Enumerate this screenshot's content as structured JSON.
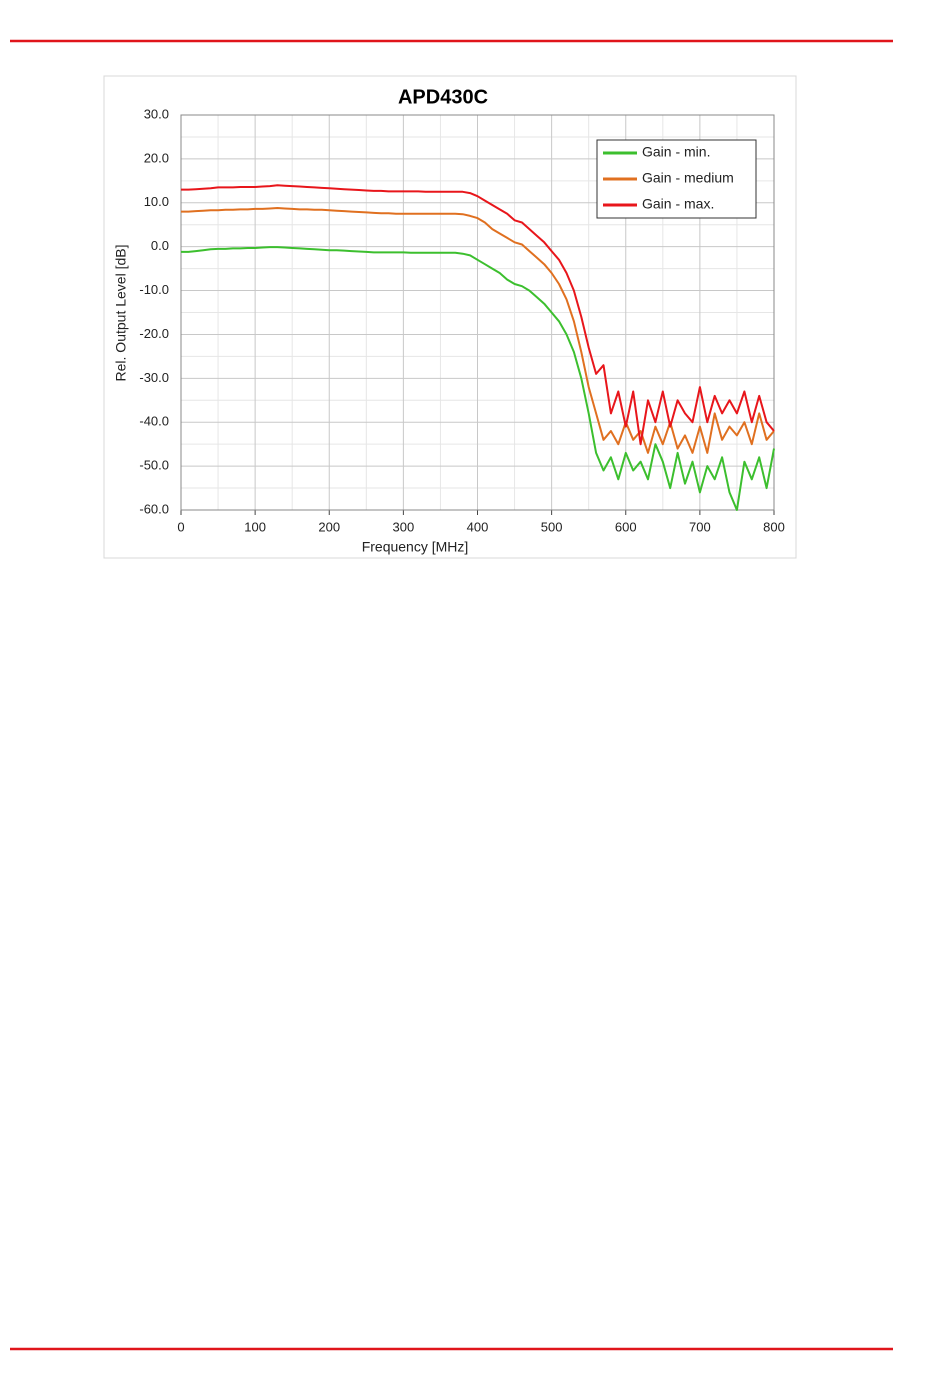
{
  "chart_data": {
    "type": "line",
    "title": "APD430C",
    "x_label": "Frequency [MHz]",
    "y_label": "Rel. Output Level [dB]",
    "x": [
      0,
      10,
      20,
      30,
      40,
      50,
      60,
      70,
      80,
      90,
      100,
      110,
      120,
      130,
      140,
      150,
      160,
      170,
      180,
      190,
      200,
      210,
      220,
      230,
      240,
      250,
      260,
      270,
      280,
      290,
      300,
      310,
      320,
      330,
      340,
      350,
      360,
      370,
      380,
      390,
      400,
      410,
      420,
      430,
      440,
      450,
      460,
      470,
      480,
      490,
      500,
      510,
      520,
      530,
      540,
      550,
      560,
      570,
      580,
      590,
      600,
      610,
      620,
      630,
      640,
      650,
      660,
      670,
      680,
      690,
      700,
      710,
      720,
      730,
      740,
      750,
      760,
      770,
      780,
      790,
      800
    ],
    "series": [
      {
        "name": "Gain - min.",
        "color": "#3cbf2e",
        "values": [
          -1.2,
          -1.2,
          -1,
          -0.8,
          -0.6,
          -0.5,
          -0.5,
          -0.4,
          -0.4,
          -0.3,
          -0.3,
          -0.2,
          -0.1,
          -0.1,
          -0.2,
          -0.3,
          -0.4,
          -0.5,
          -0.6,
          -0.7,
          -0.8,
          -0.8,
          -0.9,
          -1,
          -1.1,
          -1.2,
          -1.3,
          -1.3,
          -1.3,
          -1.3,
          -1.3,
          -1.4,
          -1.4,
          -1.4,
          -1.4,
          -1.4,
          -1.4,
          -1.4,
          -1.6,
          -2,
          -3,
          -4,
          -5,
          -6,
          -7.5,
          -8.5,
          -9,
          -10,
          -11.5,
          -13,
          -15,
          -17,
          -20,
          -24,
          -30,
          -38,
          -47,
          -51,
          -48,
          -53,
          -47,
          -51,
          -49,
          -53,
          -45,
          -49,
          -55,
          -47,
          -54,
          -49,
          -56,
          -50,
          -53,
          -48,
          -56,
          -60,
          -49,
          -53,
          -48,
          -55,
          -46
        ]
      },
      {
        "name": "Gain - medium",
        "color": "#e07020",
        "values": [
          8,
          8,
          8.1,
          8.2,
          8.3,
          8.3,
          8.4,
          8.4,
          8.5,
          8.5,
          8.6,
          8.6,
          8.7,
          8.8,
          8.7,
          8.6,
          8.5,
          8.5,
          8.4,
          8.4,
          8.3,
          8.2,
          8.1,
          8,
          7.9,
          7.8,
          7.7,
          7.6,
          7.6,
          7.5,
          7.5,
          7.5,
          7.5,
          7.5,
          7.5,
          7.5,
          7.5,
          7.5,
          7.4,
          7,
          6.5,
          5.5,
          4,
          3,
          2,
          1,
          0.5,
          -1,
          -2.5,
          -4,
          -6,
          -8.5,
          -12,
          -17,
          -24,
          -32,
          -38,
          -44,
          -42,
          -45,
          -40,
          -44,
          -42,
          -47,
          -41,
          -45,
          -40,
          -46,
          -43,
          -47,
          -41,
          -47,
          -38,
          -44,
          -41,
          -43,
          -40,
          -45,
          -38,
          -44,
          -42
        ]
      },
      {
        "name": "Gain - max.",
        "color": "#e8161b",
        "values": [
          13,
          13,
          13.1,
          13.2,
          13.3,
          13.5,
          13.5,
          13.5,
          13.6,
          13.6,
          13.6,
          13.7,
          13.8,
          14,
          13.9,
          13.8,
          13.7,
          13.6,
          13.5,
          13.4,
          13.3,
          13.2,
          13.1,
          13,
          12.9,
          12.8,
          12.7,
          12.7,
          12.6,
          12.6,
          12.6,
          12.6,
          12.6,
          12.5,
          12.5,
          12.5,
          12.5,
          12.5,
          12.5,
          12.2,
          11.5,
          10.5,
          9.5,
          8.5,
          7.5,
          6,
          5.5,
          4,
          2.5,
          1,
          -1,
          -3,
          -6,
          -10,
          -16,
          -23,
          -29,
          -27,
          -38,
          -33,
          -41,
          -33,
          -45,
          -35,
          -40,
          -33,
          -41,
          -35,
          -38,
          -40,
          -32,
          -40,
          -34,
          -38,
          -35,
          -38,
          -33,
          -40,
          -34,
          -40,
          -42
        ]
      }
    ],
    "xlim": [
      0,
      800
    ],
    "xticks": [
      0,
      100,
      200,
      300,
      400,
      500,
      600,
      700,
      800
    ],
    "xminorticks": [
      50,
      150,
      250,
      350,
      450,
      550,
      650,
      750
    ],
    "ylim": [
      -60,
      30
    ],
    "yticks": [
      {
        "value": -60,
        "label": "-60.0"
      },
      {
        "value": -50,
        "label": "-50.0"
      },
      {
        "value": -40,
        "label": "-40.0"
      },
      {
        "value": -30,
        "label": "-30.0"
      },
      {
        "value": -20,
        "label": "-20.0"
      },
      {
        "value": -10,
        "label": "-10.0"
      },
      {
        "value": 0,
        "label": "0.0"
      },
      {
        "value": 10,
        "label": "10.0"
      },
      {
        "value": 20,
        "label": "20.0"
      },
      {
        "value": 30,
        "label": "30.0"
      }
    ],
    "yminorticks": [
      -55,
      -45,
      -35,
      -25,
      -15,
      -5,
      5,
      15,
      25
    ],
    "grid": true,
    "legend": "upper right"
  }
}
